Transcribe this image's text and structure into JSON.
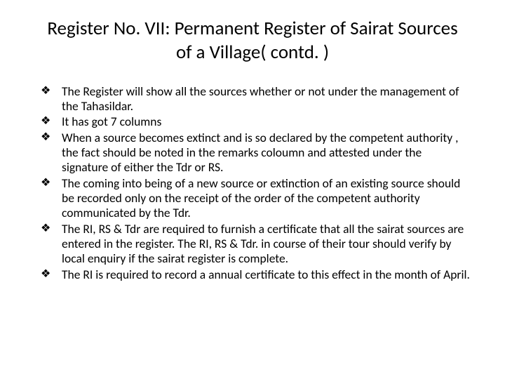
{
  "title": "Register No. VII: Permanent  Register of Sairat Sources of a Village( contd. )",
  "bullets": [
    "The Register will show all the sources whether or not under the management of the Tahasildar.",
    "It has got 7 columns",
    "When a source becomes extinct and is so declared by the competent authority , the fact should be noted in the remarks coloumn and attested under the signature of either the Tdr or RS.",
    "The  coming into being of a new source or extinction of an existing source should be recorded only on the receipt of the order of the competent authority communicated by the Tdr.",
    "The RI, RS & Tdr are required to furnish a certificate that all the sairat sources are entered in the register. The RI, RS & Tdr. in course of their tour should verify by local enquiry if the sairat register is complete.",
    "The RI is required to  record a annual certificate to this effect in the month of April."
  ],
  "style": {
    "background_color": "#ffffff",
    "text_color": "#000000",
    "title_fontsize": 27,
    "body_fontsize": 17.5,
    "font_family": "Calibri",
    "bullet_glyph": "❖",
    "slide_width": 720,
    "slide_height": 540
  }
}
